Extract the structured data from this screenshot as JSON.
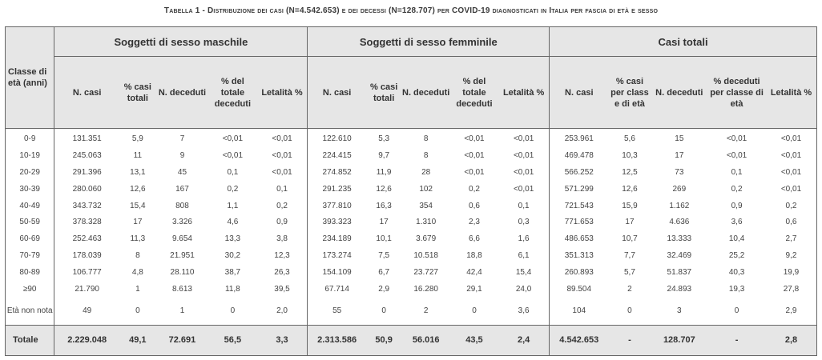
{
  "caption": "Tabella 1 - Distribuzione dei casi (N=4.542.653) e dei decessi (N=128.707) per COVID-19 diagnosticati in Italia per fascia di età e sesso",
  "header": {
    "classe": "Classe di età (anni)",
    "groups": [
      "Soggetti di sesso maschile",
      "Soggetti di sesso femminile",
      "Casi totali"
    ],
    "sub": [
      "N. casi",
      "% casi totali",
      "N. deceduti",
      "% del totale deceduti",
      "Letalità %",
      "N. casi",
      "% casi totali",
      "N. deceduti",
      "% del totale deceduti",
      "Letalità %",
      "N. casi",
      "% casi per class e di età",
      "N. deceduti",
      "% deceduti per classe di età",
      "Letalità %"
    ]
  },
  "rows": [
    {
      "age": "0-9",
      "cells": [
        "131.351",
        "5,9",
        "7",
        "<0,01",
        "<0,01",
        "122.610",
        "5,3",
        "8",
        "<0,01",
        "<0,01",
        "253.961",
        "5,6",
        "15",
        "<0,01",
        "<0,01"
      ]
    },
    {
      "age": "10-19",
      "cells": [
        "245.063",
        "11",
        "9",
        "<0,01",
        "<0,01",
        "224.415",
        "9,7",
        "8",
        "<0,01",
        "<0,01",
        "469.478",
        "10,3",
        "17",
        "<0,01",
        "<0,01"
      ]
    },
    {
      "age": "20-29",
      "cells": [
        "291.396",
        "13,1",
        "45",
        "0,1",
        "<0,01",
        "274.852",
        "11,9",
        "28",
        "<0,01",
        "<0,01",
        "566.252",
        "12,5",
        "73",
        "0,1",
        "<0,01"
      ]
    },
    {
      "age": "30-39",
      "cells": [
        "280.060",
        "12,6",
        "167",
        "0,2",
        "0,1",
        "291.235",
        "12,6",
        "102",
        "0,2",
        "<0,01",
        "571.299",
        "12,6",
        "269",
        "0,2",
        "<0,01"
      ]
    },
    {
      "age": "40-49",
      "cells": [
        "343.732",
        "15,4",
        "808",
        "1,1",
        "0,2",
        "377.810",
        "16,3",
        "354",
        "0,6",
        "0,1",
        "721.543",
        "15,9",
        "1.162",
        "0,9",
        "0,2"
      ]
    },
    {
      "age": "50-59",
      "cells": [
        "378.328",
        "17",
        "3.326",
        "4,6",
        "0,9",
        "393.323",
        "17",
        "1.310",
        "2,3",
        "0,3",
        "771.653",
        "17",
        "4.636",
        "3,6",
        "0,6"
      ]
    },
    {
      "age": "60-69",
      "cells": [
        "252.463",
        "11,3",
        "9.654",
        "13,3",
        "3,8",
        "234.189",
        "10,1",
        "3.679",
        "6,6",
        "1,6",
        "486.653",
        "10,7",
        "13.333",
        "10,4",
        "2,7"
      ]
    },
    {
      "age": "70-79",
      "cells": [
        "178.039",
        "8",
        "21.951",
        "30,2",
        "12,3",
        "173.274",
        "7,5",
        "10.518",
        "18,8",
        "6,1",
        "351.313",
        "7,7",
        "32.469",
        "25,2",
        "9,2"
      ]
    },
    {
      "age": "80-89",
      "cells": [
        "106.777",
        "4,8",
        "28.110",
        "38,7",
        "26,3",
        "154.109",
        "6,7",
        "23.727",
        "42,4",
        "15,4",
        "260.893",
        "5,7",
        "51.837",
        "40,3",
        "19,9"
      ]
    },
    {
      "age": "≥90",
      "cells": [
        "21.790",
        "1",
        "8.613",
        "11,8",
        "39,5",
        "67.714",
        "2,9",
        "16.280",
        "29,1",
        "24,0",
        "89.504",
        "2",
        "24.893",
        "19,3",
        "27,8"
      ]
    },
    {
      "age": "Età non nota",
      "cells": [
        "49",
        "0",
        "1",
        "0",
        "2,0",
        "55",
        "0",
        "2",
        "0",
        "3,6",
        "104",
        "0",
        "3",
        "0",
        "2,9"
      ]
    }
  ],
  "total": {
    "age": "Totale",
    "cells": [
      "2.229.048",
      "49,1",
      "72.691",
      "56,5",
      "3,3",
      "2.313.586",
      "50,9",
      "56.016",
      "43,5",
      "2,4",
      "4.542.653",
      "-",
      "128.707",
      "-",
      "2,8"
    ]
  }
}
